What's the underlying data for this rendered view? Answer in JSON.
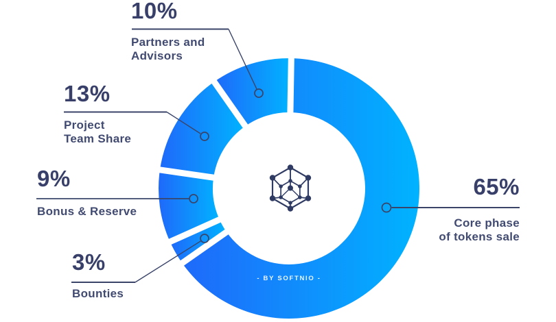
{
  "chart_data": {
    "type": "pie",
    "variant": "donut",
    "units": "%",
    "direction": "clockwise",
    "start_angle_clockwise_from_top_deg": 1,
    "inner_radius_ratio": 0.58,
    "legend": "none",
    "slices": [
      {
        "label": "Core phase of tokens sale",
        "value": 65
      },
      {
        "label": "Bounties",
        "value": 3
      },
      {
        "label": "Bonus & Reserve",
        "value": 9
      },
      {
        "label": "Project Team Share",
        "value": 13
      },
      {
        "label": "Partners and Advisors",
        "value": 10
      }
    ],
    "colors": {
      "gradient_start": "#1f69fa",
      "gradient_end": "#00b3ff",
      "text": "#38406a",
      "connector": "#3a4469"
    }
  },
  "labels": [
    {
      "percent": "10%",
      "lines": [
        "Partners and",
        "Advisors"
      ]
    },
    {
      "percent": "13%",
      "lines": [
        "Project",
        "Team Share"
      ]
    },
    {
      "percent": "9%",
      "lines": [
        "Bonus & Reserve"
      ]
    },
    {
      "percent": "3%",
      "lines": [
        "Bounties"
      ]
    },
    {
      "percent": "65%",
      "lines": [
        "Core phase",
        "of tokens sale"
      ]
    }
  ],
  "center": {
    "credit": "- BY SOFTNIO -",
    "logo": "softnio-hex-network-logo"
  }
}
